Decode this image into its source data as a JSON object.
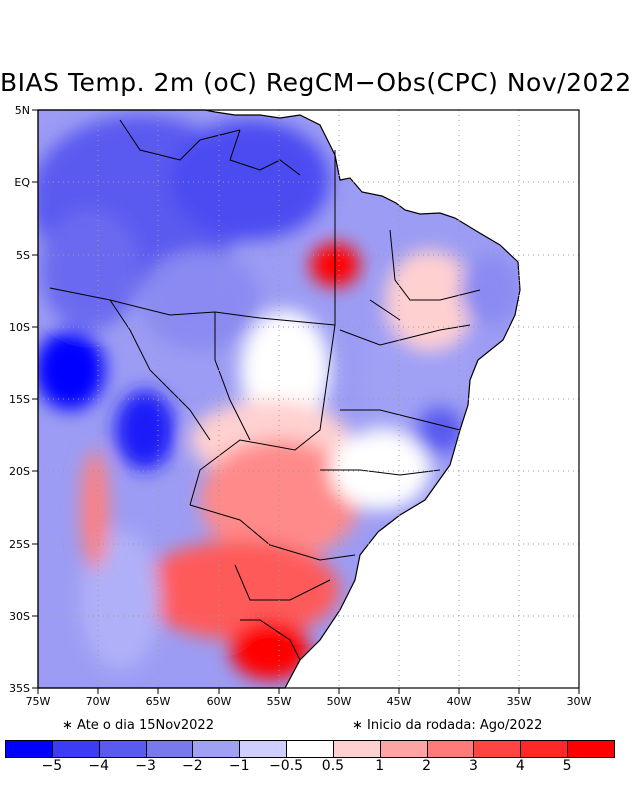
{
  "title": "BIAS Temp. 2m (oC) RegCM−Obs(CPC) Nov/2022",
  "map": {
    "lon_ticks": [
      "75W",
      "70W",
      "65W",
      "60W",
      "55W",
      "50W",
      "45W",
      "40W",
      "35W",
      "30W"
    ],
    "lat_ticks": [
      "5N",
      "EQ",
      "5S",
      "10S",
      "15S",
      "20S",
      "25S",
      "30S",
      "35S"
    ]
  },
  "notes": {
    "left": "∗ Ate o dia 15Nov2022",
    "right": "∗ Inicio da rodada: Ago/2022"
  },
  "colorbar": {
    "labels": [
      "−5",
      "−4",
      "−3",
      "−2",
      "−1",
      "−0.5",
      "0.5",
      "1",
      "2",
      "3",
      "4",
      "5"
    ],
    "colors": [
      "#0000ff",
      "#3c3cf5",
      "#5a5af0",
      "#7878ef",
      "#a0a0f5",
      "#ceceff",
      "#ffffff",
      "#ffd0d0",
      "#ffa4a4",
      "#ff7a7a",
      "#ff4444",
      "#ff2828",
      "#ff0000"
    ]
  },
  "colors": {
    "ocean": "#ffffff",
    "land_neutral": "#ffffff",
    "border": "#000000",
    "grid": "#9a9a9a"
  }
}
